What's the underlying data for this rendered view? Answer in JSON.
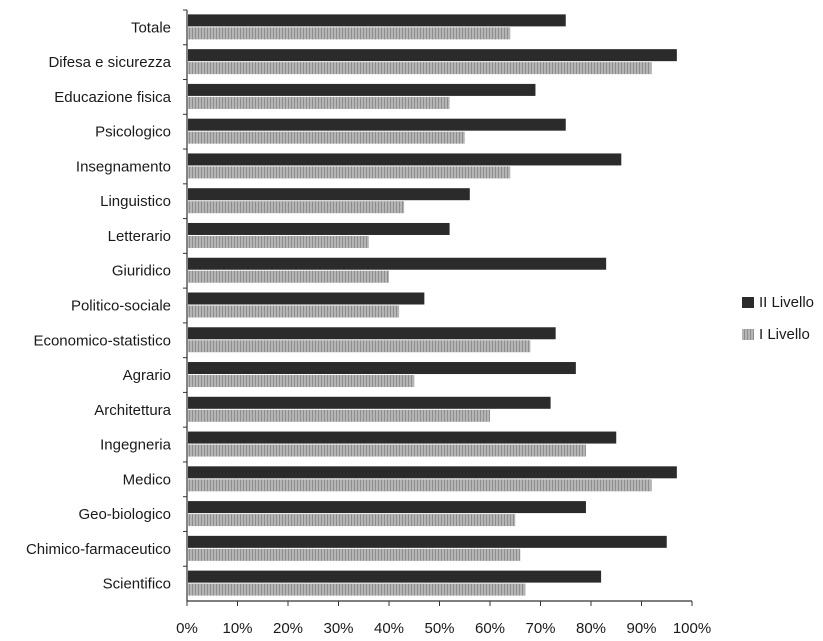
{
  "chart_data": {
    "type": "bar",
    "orientation": "horizontal",
    "categories": [
      "Totale",
      "Difesa e sicurezza",
      "Educazione fisica",
      "Psicologico",
      "Insegnamento",
      "Linguistico",
      "Letterario",
      "Giuridico",
      "Politico-sociale",
      "Economico-statistico",
      "Agrario",
      "Architettura",
      "Ingegneria",
      "Medico",
      "Geo-biologico",
      "Chimico-farmaceutico",
      "Scientifico"
    ],
    "series": [
      {
        "name": "II Livello",
        "color": "#2b2b2b",
        "values": [
          75,
          97,
          69,
          75,
          86,
          56,
          52,
          83,
          47,
          73,
          77,
          72,
          85,
          97,
          79,
          95,
          82
        ]
      },
      {
        "name": "I Livello",
        "color": "#a6a6a6",
        "values": [
          64,
          92,
          52,
          55,
          64,
          43,
          36,
          40,
          42,
          68,
          45,
          60,
          79,
          92,
          65,
          66,
          67
        ]
      }
    ],
    "xlim": [
      0,
      100
    ],
    "x_ticks": [
      "0%",
      "10%",
      "20%",
      "30%",
      "40%",
      "50%",
      "60%",
      "70%",
      "80%",
      "90%",
      "100%"
    ],
    "title": "",
    "xlabel": "",
    "ylabel": "",
    "grid": false,
    "legend_position": "right"
  }
}
